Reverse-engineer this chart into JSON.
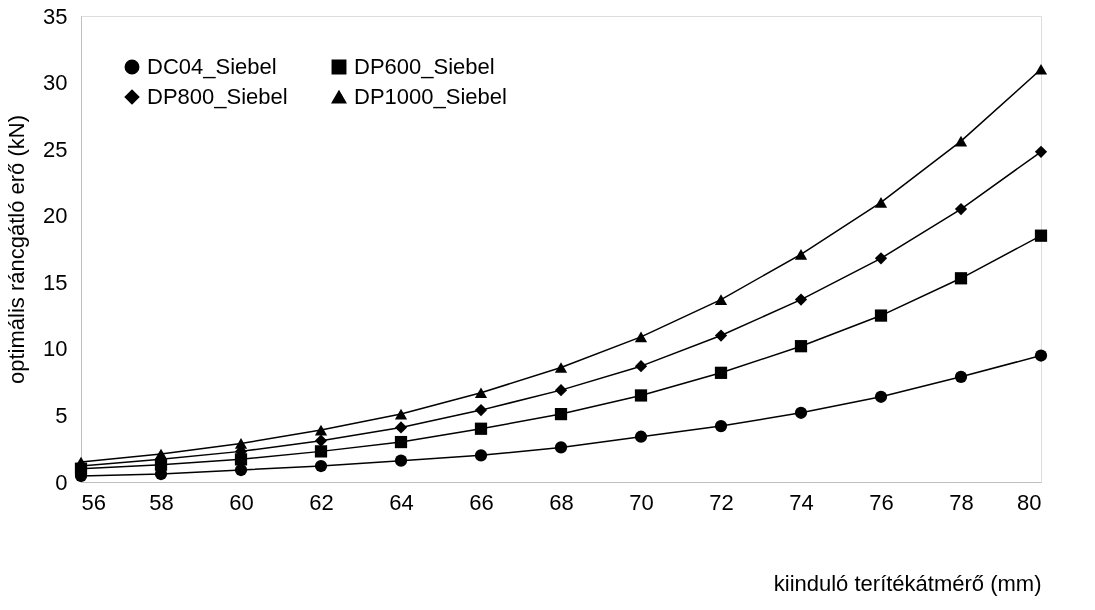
{
  "chart_data": {
    "type": "line",
    "xlabel": "kiinduló terítékátmérő (mm)",
    "ylabel": "optimális ráncgátló erő (kN)",
    "x": [
      56,
      58,
      60,
      62,
      64,
      66,
      68,
      70,
      72,
      74,
      76,
      78,
      80
    ],
    "series": [
      {
        "name": "DC04_Siebel",
        "color": "#000000",
        "marker": "circle",
        "values": [
          0.45,
          0.6,
          0.9,
          1.2,
          1.6,
          2.0,
          2.6,
          3.4,
          4.2,
          5.2,
          6.4,
          7.9,
          9.5
        ]
      },
      {
        "name": "DP600_Siebel",
        "color": "#000000",
        "marker": "square",
        "values": [
          1.0,
          1.3,
          1.7,
          2.3,
          3.0,
          4.0,
          5.1,
          6.5,
          8.2,
          10.2,
          12.5,
          15.3,
          18.5
        ]
      },
      {
        "name": "DP800_Siebel",
        "color": "#000000",
        "marker": "diamond",
        "values": [
          1.2,
          1.7,
          2.3,
          3.1,
          4.1,
          5.4,
          6.9,
          8.7,
          11.0,
          13.7,
          16.8,
          20.5,
          24.8
        ]
      },
      {
        "name": "DP1000_Siebel",
        "color": "#000000",
        "marker": "triangle",
        "values": [
          1.5,
          2.1,
          2.9,
          3.9,
          5.1,
          6.7,
          8.6,
          10.9,
          13.7,
          17.1,
          21.0,
          25.6,
          31.0
        ]
      }
    ],
    "xlim": [
      56,
      80
    ],
    "xticks": [
      56,
      58,
      60,
      62,
      64,
      66,
      68,
      70,
      72,
      74,
      76,
      78,
      80
    ],
    "ylim": [
      0,
      35
    ],
    "yticks": [
      0,
      5,
      10,
      15,
      20,
      25,
      30,
      35
    ],
    "grid": false,
    "legend": "top left",
    "line_style": "solid"
  }
}
